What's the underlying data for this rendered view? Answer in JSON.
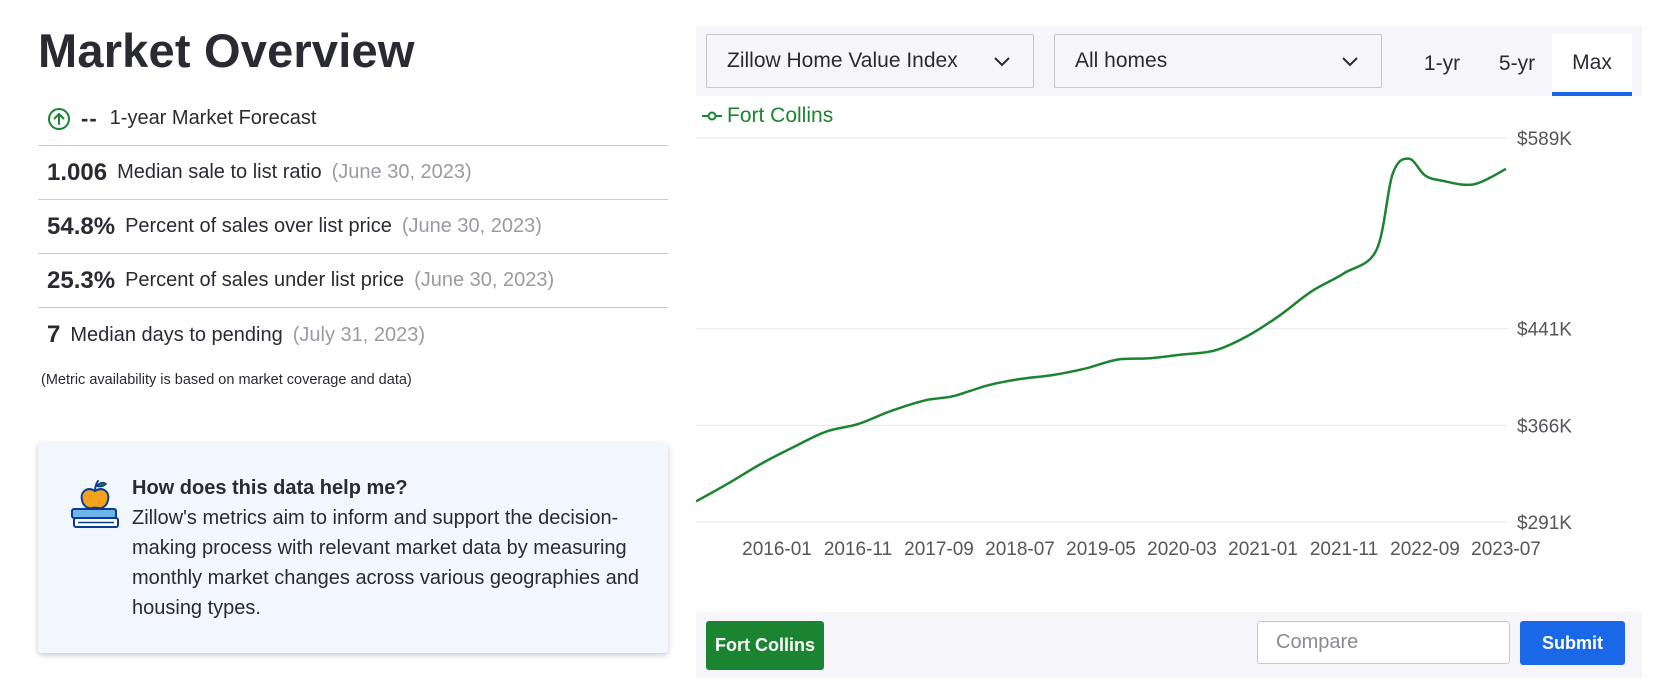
{
  "title": "Market Overview",
  "metrics": [
    {
      "value": "--",
      "label": "1-year Market Forecast",
      "date": "",
      "icon": "arrow-up-circle-icon"
    },
    {
      "value": "1.006",
      "label": "Median sale to list ratio",
      "date": "(June 30, 2023)"
    },
    {
      "value": "54.8%",
      "label": "Percent of sales over list price",
      "date": "(June 30, 2023)"
    },
    {
      "value": "25.3%",
      "label": "Percent of sales under list price",
      "date": "(June 30, 2023)"
    },
    {
      "value": "7",
      "label": "Median days to pending",
      "date": "(July 31, 2023)"
    }
  ],
  "footnote": "(Metric availability is based on market coverage and data)",
  "help": {
    "icon": "apple-on-books-icon",
    "title": "How does this data help me?",
    "body": "Zillow's metrics aim to inform and support the decision-making process with relevant market data by measuring monthly market changes across various geographies and housing types."
  },
  "controls": {
    "metric_select": "Zillow Home Value Index",
    "home_type_select": "All homes",
    "ranges": [
      "1-yr",
      "5-yr",
      "Max"
    ],
    "active_range": "Max"
  },
  "chart_data": {
    "type": "line",
    "series": [
      {
        "name": "Fort Collins",
        "color": "#1b8431",
        "x": [
          "2015-03",
          "2015-07",
          "2015-11",
          "2016-03",
          "2016-07",
          "2016-11",
          "2017-03",
          "2017-07",
          "2017-09",
          "2017-11",
          "2018-03",
          "2018-07",
          "2018-11",
          "2019-03",
          "2019-07",
          "2019-11",
          "2020-03",
          "2020-07",
          "2020-11",
          "2021-03",
          "2021-07",
          "2021-11",
          "2022-03",
          "2022-05",
          "2022-07",
          "2022-09",
          "2022-11",
          "2023-03",
          "2023-07"
        ],
        "values": [
          307,
          321,
          336,
          349,
          361,
          367,
          377,
          385,
          387,
          389,
          397,
          402,
          405,
          410,
          417,
          418,
          421,
          424,
          435,
          451,
          470,
          484,
          502,
          561,
          573,
          560,
          556,
          553,
          565
        ]
      }
    ],
    "yticks": [
      "$589K",
      "$441K",
      "$366K",
      "$291K"
    ],
    "ytick_values": [
      589,
      441,
      366,
      291
    ],
    "xticks": [
      "2016-01",
      "2016-11",
      "2017-09",
      "2018-07",
      "2019-05",
      "2020-03",
      "2021-01",
      "2021-11",
      "2022-09",
      "2023-07"
    ],
    "xlim": [
      "2015-03",
      "2023-07"
    ],
    "ylim": [
      291,
      589
    ],
    "grid": true,
    "legend": "top-left"
  },
  "bottom": {
    "region_button": "Fort Collins",
    "compare_placeholder": "Compare",
    "submit_label": "Submit"
  }
}
